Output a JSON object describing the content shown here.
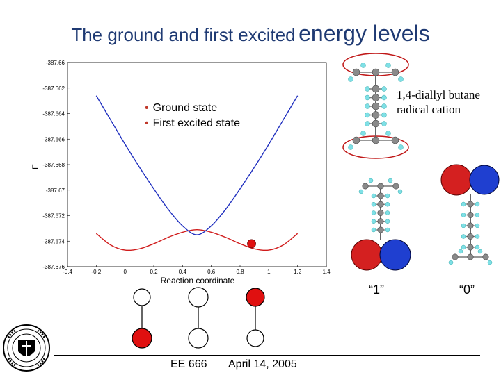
{
  "slide": {
    "title_part1": "The ground and first excited",
    "title_part2": "energy levels",
    "footer_course": "EE 666",
    "footer_date": "April 14, 2005"
  },
  "legend": {
    "items": [
      "Ground state",
      "First excited state"
    ]
  },
  "molecule": {
    "label_line1": "1,4-diallyl butane",
    "label_line2": "radical cation",
    "state_label_1": "“1”",
    "state_label_0": "“0”"
  },
  "chart_data": {
    "type": "line",
    "xlabel": "Reaction coordinate",
    "ylabel": "E",
    "x_tick_labels": [
      "-0.4",
      "-0.2",
      "0",
      "0.2",
      "0.4",
      "0.6",
      "0.8",
      "1",
      "1.2",
      "1.4"
    ],
    "y_tick_labels": [
      "-387.66",
      "-387.662",
      "-387.664",
      "-387.666",
      "-387.668",
      "-387.67",
      "-387.672",
      "-387.674",
      "-387.676"
    ],
    "xlim": [
      -0.4,
      1.4
    ],
    "ylim": [
      -387.676,
      -387.66
    ],
    "grid": false,
    "series": [
      {
        "name": "First excited state",
        "color": "#1f2fbf",
        "x": [
          -0.2,
          -0.1,
          0.0,
          0.1,
          0.2,
          0.3,
          0.4,
          0.5,
          0.6,
          0.7,
          0.8,
          0.9,
          1.0,
          1.1,
          1.2
        ],
        "y": [
          -387.6626,
          -387.6645,
          -387.6664,
          -387.6682,
          -387.6699,
          -387.6715,
          -387.6728,
          -387.6735,
          -387.6728,
          -387.6715,
          -387.6699,
          -387.6682,
          -387.6664,
          -387.6645,
          -387.6626
        ]
      },
      {
        "name": "Ground state",
        "color": "#d01b1b",
        "x": [
          -0.2,
          -0.1,
          0.0,
          0.1,
          0.2,
          0.3,
          0.4,
          0.5,
          0.6,
          0.7,
          0.8,
          0.9,
          1.0,
          1.1,
          1.2
        ],
        "y": [
          -387.6734,
          -387.6743,
          -387.6747,
          -387.6746,
          -387.6742,
          -387.6737,
          -387.6733,
          -387.6731,
          -387.6733,
          -387.6737,
          -387.6742,
          -387.6746,
          -387.6747,
          -387.6743,
          -387.6734
        ]
      }
    ],
    "marker": {
      "x": 0.88,
      "y": -387.6742,
      "color": "#e01010"
    }
  },
  "qca_cells": [
    {
      "top_filled": false,
      "bottom_filled": true
    },
    {
      "top_filled": false,
      "bottom_filled": false
    },
    {
      "top_filled": true,
      "bottom_filled": false
    }
  ],
  "colors": {
    "title": "#1f3a73",
    "filled_dot": "#e01010",
    "orbital_red": "#d42020",
    "orbital_blue": "#1f3fd0",
    "carbon": "#8a8a8a",
    "hydrogen": "#7fe0e6"
  },
  "logo": {
    "name": "university-seal-icon"
  }
}
